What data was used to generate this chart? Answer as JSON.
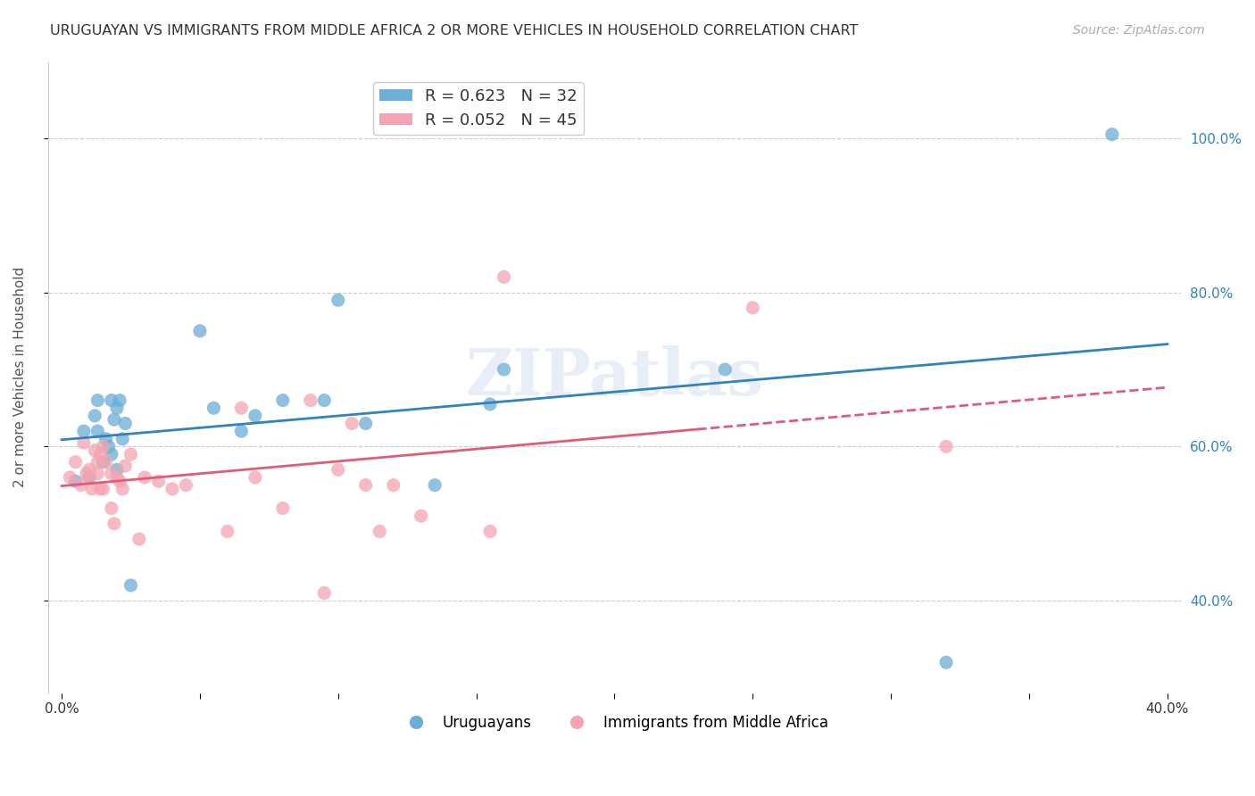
{
  "title": "URUGUAYAN VS IMMIGRANTS FROM MIDDLE AFRICA 2 OR MORE VEHICLES IN HOUSEHOLD CORRELATION CHART",
  "source": "Source: ZipAtlas.com",
  "ylabel": "2 or more Vehicles in Household",
  "xlabel": "",
  "xlim": [
    0.0,
    0.4
  ],
  "ylim": [
    0.0,
    1.05
  ],
  "yticks": [
    0.4,
    0.6,
    0.8,
    1.0
  ],
  "ytick_labels": [
    "40.0%",
    "60.0%",
    "80.0%",
    "100.0%"
  ],
  "xticks": [
    0.0,
    0.05,
    0.1,
    0.15,
    0.2,
    0.25,
    0.3,
    0.35,
    0.4
  ],
  "xtick_labels": [
    "0.0%",
    "",
    "",
    "",
    "",
    "",
    "",
    "",
    "40.0%"
  ],
  "legend_blue_r": "R = 0.623",
  "legend_blue_n": "N = 32",
  "legend_pink_r": "R = 0.052",
  "legend_pink_n": "N = 45",
  "blue_color": "#6baed6",
  "pink_color": "#f4a4b0",
  "blue_line_color": "#3182bd",
  "pink_line_color": "#e05c7a",
  "watermark": "ZIPatlas",
  "blue_scatter_x": [
    0.005,
    0.008,
    0.01,
    0.012,
    0.013,
    0.013,
    0.015,
    0.016,
    0.017,
    0.018,
    0.018,
    0.019,
    0.02,
    0.02,
    0.021,
    0.022,
    0.023,
    0.025,
    0.05,
    0.055,
    0.065,
    0.07,
    0.08,
    0.095,
    0.1,
    0.11,
    0.135,
    0.155,
    0.16,
    0.24,
    0.32,
    0.38
  ],
  "blue_scatter_y": [
    0.555,
    0.62,
    0.56,
    0.64,
    0.66,
    0.62,
    0.58,
    0.61,
    0.6,
    0.66,
    0.59,
    0.635,
    0.65,
    0.57,
    0.66,
    0.61,
    0.63,
    0.42,
    0.75,
    0.65,
    0.62,
    0.64,
    0.66,
    0.66,
    0.79,
    0.63,
    0.55,
    0.655,
    0.7,
    0.7,
    0.32,
    1.005
  ],
  "pink_scatter_x": [
    0.003,
    0.005,
    0.007,
    0.008,
    0.009,
    0.01,
    0.01,
    0.011,
    0.012,
    0.013,
    0.013,
    0.014,
    0.014,
    0.015,
    0.015,
    0.016,
    0.018,
    0.018,
    0.019,
    0.02,
    0.021,
    0.022,
    0.023,
    0.025,
    0.028,
    0.03,
    0.035,
    0.04,
    0.045,
    0.06,
    0.065,
    0.07,
    0.08,
    0.09,
    0.095,
    0.1,
    0.105,
    0.11,
    0.115,
    0.12,
    0.13,
    0.155,
    0.16,
    0.25,
    0.32
  ],
  "pink_scatter_y": [
    0.56,
    0.58,
    0.55,
    0.605,
    0.565,
    0.57,
    0.56,
    0.545,
    0.595,
    0.58,
    0.565,
    0.59,
    0.545,
    0.6,
    0.545,
    0.58,
    0.52,
    0.565,
    0.5,
    0.56,
    0.555,
    0.545,
    0.575,
    0.59,
    0.48,
    0.56,
    0.555,
    0.545,
    0.55,
    0.49,
    0.65,
    0.56,
    0.52,
    0.66,
    0.41,
    0.57,
    0.63,
    0.55,
    0.49,
    0.55,
    0.51,
    0.49,
    0.82,
    0.78,
    0.6
  ],
  "background_color": "#ffffff",
  "grid_color": "#cccccc"
}
